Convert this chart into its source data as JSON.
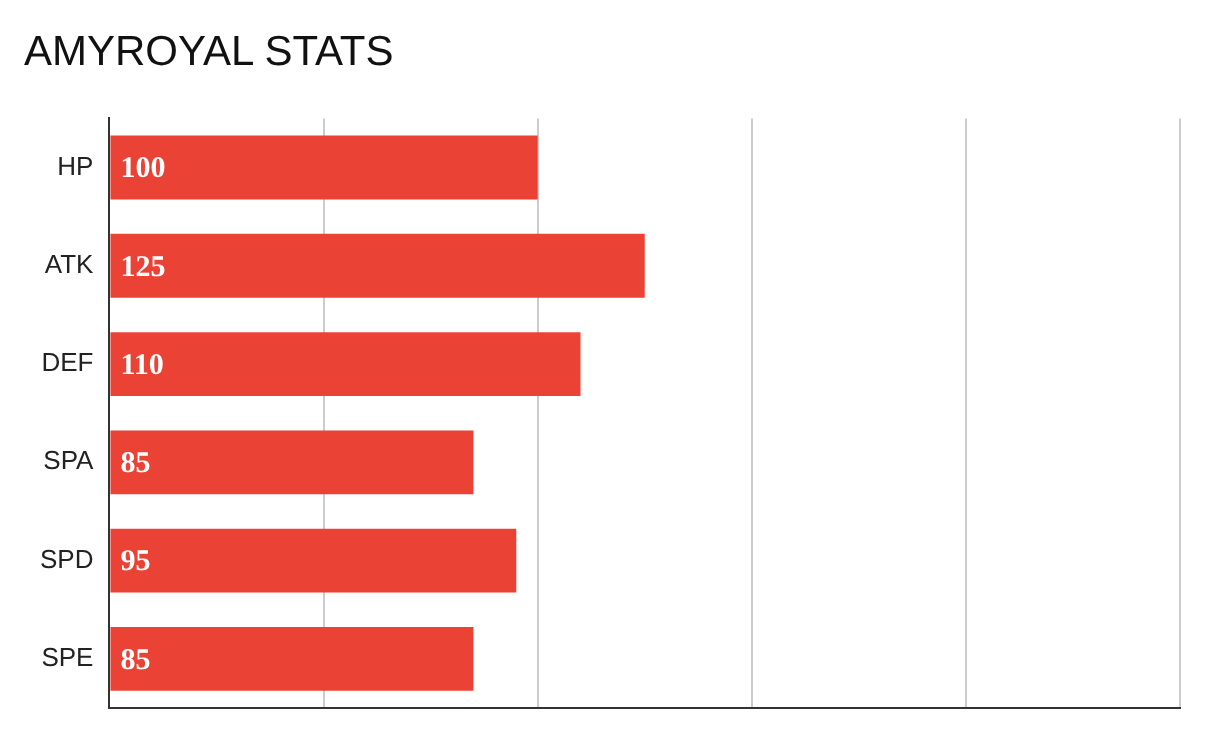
{
  "chart_data": {
    "type": "bar",
    "title": "AMYROYAL STATS",
    "orientation": "horizontal",
    "categories": [
      "HP",
      "ATK",
      "DEF",
      "SPA",
      "SPD",
      "SPE"
    ],
    "values": [
      100,
      125,
      110,
      85,
      95,
      85
    ],
    "color": "#ea4335",
    "xlim": [
      0,
      250
    ],
    "xticks": [
      {
        "value": 0,
        "label": null
      },
      {
        "value": 50,
        "label": null
      },
      {
        "value": 100,
        "label": null
      },
      {
        "value": 150,
        "label": null
      },
      {
        "value": 200,
        "label": null
      },
      {
        "value": 250,
        "label": null
      }
    ],
    "grid": "x",
    "tick_labels": "y",
    "data_labels": true,
    "legend": false
  }
}
